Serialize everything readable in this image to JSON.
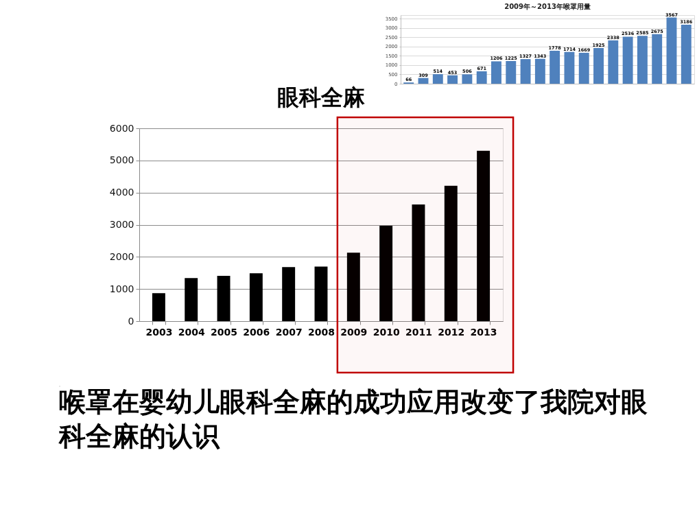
{
  "chart_data": [
    {
      "type": "bar",
      "title": "眼科全麻",
      "categories": [
        "2003",
        "2004",
        "2005",
        "2006",
        "2007",
        "2008",
        "2009",
        "2010",
        "2011",
        "2012",
        "2013"
      ],
      "values": [
        870,
        1340,
        1410,
        1490,
        1680,
        1700,
        2130,
        2970,
        3630,
        4210,
        5300
      ],
      "color": "#000000",
      "ylim": [
        0,
        6000
      ],
      "yticks": [
        0,
        1000,
        2000,
        3000,
        4000,
        5000,
        6000
      ],
      "grid": "y",
      "bands": [
        {
          "axis": "x",
          "from": "2009",
          "to": "2013",
          "color": "#c00000"
        }
      ],
      "annotations": [
        "喉罩在婴幼儿眼科全麻的成功应用改变了我院对眼科全麻的认识"
      ]
    },
    {
      "type": "bar",
      "title": "2009年～2013年喉罩用量",
      "categories": [
        null,
        null,
        null,
        null,
        null,
        null,
        null,
        null,
        null,
        null,
        null,
        null,
        null,
        null,
        null,
        null,
        null,
        null,
        null,
        null
      ],
      "values": [
        66,
        309,
        514,
        453,
        506,
        671,
        1206,
        1225,
        1327,
        1343,
        1778,
        1714,
        1669,
        1925,
        2338,
        2536,
        2585,
        2675,
        3567,
        3186
      ],
      "color": "#4f81bd",
      "ylim": [
        0,
        3700
      ],
      "yticks": [
        0,
        500,
        1000,
        1500,
        2000,
        2500,
        3000,
        3500
      ],
      "grid": "y",
      "data_labels": true
    }
  ]
}
